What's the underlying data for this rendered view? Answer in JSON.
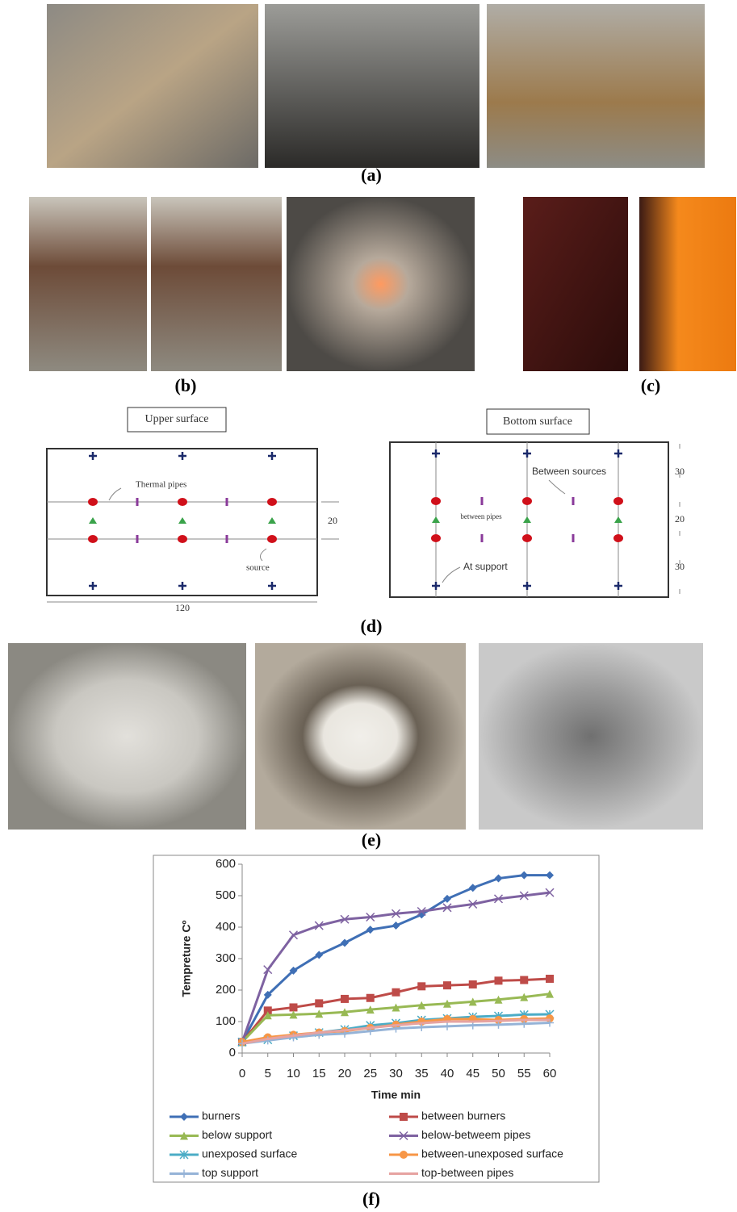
{
  "captions": [
    "(a)",
    "(b)",
    "(c)",
    "(d)",
    "(e)",
    "(f)"
  ],
  "diagram": {
    "upper": {
      "title": "Upper surface",
      "labels": [
        "Thermal pipes",
        "source"
      ],
      "dimensions": [
        20,
        120
      ]
    },
    "bottom": {
      "title": "Bottom surface",
      "labels": [
        "Between sources",
        "between pipes",
        "At support"
      ],
      "dimensions": [
        30,
        20,
        30
      ]
    }
  },
  "chart_data": {
    "type": "line",
    "xlabel": "Time min",
    "ylabel": "Tempreture Cº",
    "x": [
      0,
      5,
      10,
      15,
      20,
      25,
      30,
      35,
      40,
      45,
      50,
      55,
      60
    ],
    "xlim": [
      0,
      60
    ],
    "xticks": [
      0,
      5,
      10,
      15,
      20,
      25,
      30,
      35,
      40,
      45,
      50,
      55,
      60
    ],
    "ylim": [
      0,
      600
    ],
    "yticks": [
      0,
      100,
      200,
      300,
      400,
      500,
      600
    ],
    "series": [
      {
        "name": "burners",
        "color": "#3f6fb5",
        "marker": "diamond",
        "values": [
          35,
          185,
          262,
          312,
          350,
          392,
          405,
          440,
          490,
          525,
          555,
          565,
          565
        ]
      },
      {
        "name": "between burners",
        "color": "#be4b48",
        "marker": "square",
        "values": [
          35,
          135,
          145,
          158,
          172,
          175,
          193,
          212,
          215,
          218,
          230,
          232,
          236
        ]
      },
      {
        "name": "below support",
        "color": "#98b954",
        "marker": "triangle",
        "values": [
          35,
          120,
          122,
          125,
          130,
          138,
          145,
          152,
          157,
          163,
          170,
          178,
          188
        ]
      },
      {
        "name": "below-betweem pipes",
        "color": "#7e62a1",
        "marker": "x",
        "values": [
          35,
          265,
          375,
          405,
          425,
          432,
          443,
          450,
          462,
          473,
          490,
          500,
          510
        ]
      },
      {
        "name": "unexposed surface",
        "color": "#4bacc6",
        "marker": "star",
        "values": [
          35,
          42,
          55,
          65,
          75,
          88,
          95,
          105,
          110,
          115,
          118,
          122,
          123
        ]
      },
      {
        "name": "between-unexposed surface",
        "color": "#f79646",
        "marker": "circle",
        "values": [
          35,
          50,
          58,
          65,
          70,
          80,
          90,
          100,
          108,
          108,
          105,
          108,
          110
        ]
      },
      {
        "name": "top support",
        "color": "#95b3d7",
        "marker": "plus",
        "values": [
          30,
          40,
          50,
          58,
          62,
          70,
          78,
          82,
          85,
          88,
          90,
          93,
          96
        ]
      },
      {
        "name": "top-between pipes",
        "color": "#e6a3a1",
        "marker": "none",
        "values": [
          30,
          45,
          55,
          65,
          72,
          80,
          88,
          95,
          100,
          100,
          102,
          105,
          105
        ]
      }
    ]
  }
}
